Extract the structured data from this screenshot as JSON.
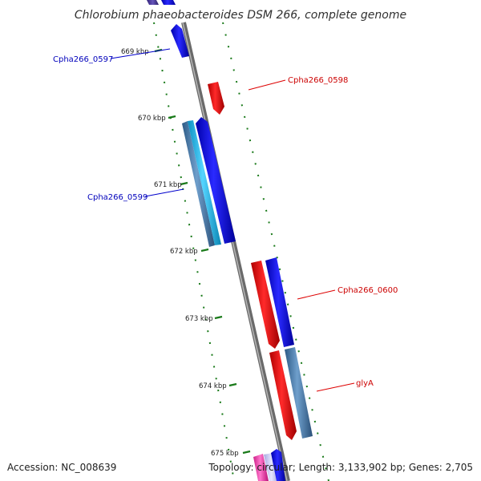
{
  "title": "Chlorobium phaeobacteroides DSM 266, complete genome",
  "ticks": [
    "669 kbp",
    "670 kbp",
    "671 kbp",
    "672 kbp",
    "673 kbp",
    "674 kbp",
    "675 kbp"
  ],
  "labels": {
    "cpha0597": "Cpha266_0597",
    "cpha0598": "Cpha266_0598",
    "cpha0599": "Cpha266_0599",
    "cpha0600": "Cpha266_0600",
    "glyA": "glyA"
  },
  "colors": {
    "forward_gene": "#0000ee",
    "reverse_gene": "#ee0000",
    "cds_blue": "#3a6ea0",
    "cds_cyan": "#22bbee",
    "pink": "#ee44aa",
    "backbone": "#8a8a8a",
    "tick": "#1a7a1a"
  },
  "footer": {
    "accession": "Accession: NC_008639",
    "topology": "Topology: circular; Length: 3,133,902 bp; Genes: 2,705"
  }
}
